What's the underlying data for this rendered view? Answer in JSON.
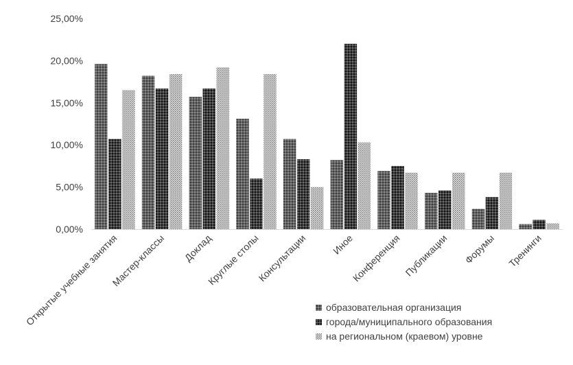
{
  "chart_data": {
    "type": "bar",
    "categories": [
      "Открытые учебные занятия",
      "Мастер-классы",
      "Доклад",
      "Круглые столы",
      "Консультации",
      "Иное",
      "Конференция",
      "Публикации",
      "Форумы",
      "Тренинги"
    ],
    "series": [
      {
        "name": "образовательная организация",
        "values": [
          19.6,
          18.2,
          15.7,
          13.1,
          10.7,
          8.2,
          6.9,
          4.3,
          2.4,
          0.6
        ],
        "color": "#666666",
        "pattern": "diamond-gray"
      },
      {
        "name": "города/муниципального образования",
        "values": [
          10.7,
          16.7,
          16.7,
          6.0,
          8.3,
          22.0,
          7.5,
          4.6,
          3.8,
          1.1
        ],
        "color": "#1a1a1a",
        "pattern": "diamond-dark"
      },
      {
        "name": "на региональном (краевом) уровне",
        "values": [
          16.5,
          18.4,
          19.2,
          18.4,
          5.0,
          10.3,
          6.7,
          6.7,
          6.7,
          0.7
        ],
        "color": "#bdbdbd",
        "pattern": "dots-light"
      }
    ],
    "y_ticks": [
      "0,00%",
      "5,00%",
      "10,00%",
      "15,00%",
      "20,00%",
      "25,00%"
    ],
    "ylim": [
      0,
      25
    ],
    "grid": false,
    "legend_position": "bottom-right"
  }
}
